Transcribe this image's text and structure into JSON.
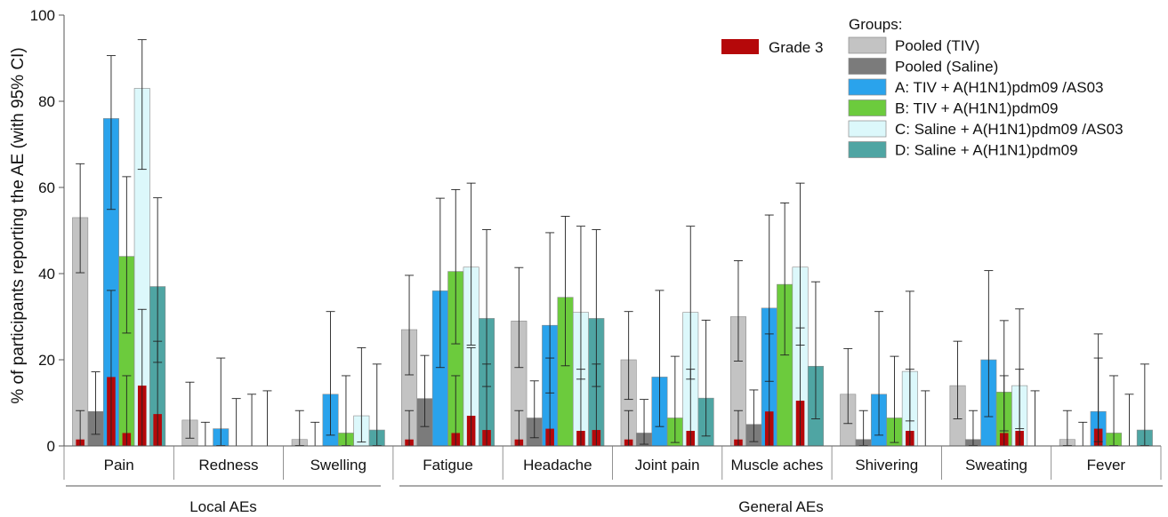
{
  "chart_data": {
    "type": "bar",
    "ylabel": "% of participants reporting the AE (with 95% CI)",
    "ylim": [
      0,
      100
    ],
    "yticks": [
      0,
      20,
      40,
      60,
      80,
      100
    ],
    "categories": [
      "Pain",
      "Redness",
      "Swelling",
      "Fatigue",
      "Headache",
      "Joint pain",
      "Muscle aches",
      "Shivering",
      "Sweating",
      "Fever"
    ],
    "category_groups": [
      {
        "label": "Local AEs",
        "categories": [
          "Pain",
          "Redness",
          "Swelling"
        ]
      },
      {
        "label": "General AEs",
        "categories": [
          "Fatigue",
          "Headache",
          "Joint pain",
          "Muscle aches",
          "Shivering",
          "Sweating",
          "Fever"
        ]
      }
    ],
    "legend_title": "Groups:",
    "legend_position": "top-right",
    "series": [
      {
        "name": "Pooled (TIV)",
        "color": "#c3c3c3",
        "values": [
          53,
          6,
          1.5,
          27,
          29,
          20,
          30,
          12,
          14,
          1.5
        ],
        "ci_upper": [
          65.5,
          14.8,
          8.2,
          39.6,
          41.4,
          31.2,
          43,
          22.6,
          24.3,
          8.2
        ],
        "ci_lower": [
          40.2,
          1.8,
          0.1,
          16.5,
          18.2,
          10.8,
          19.7,
          5.2,
          6.3,
          0.1
        ],
        "grade3": [
          1.5,
          null,
          null,
          1.5,
          1.5,
          1.5,
          1.5,
          null,
          null,
          null
        ],
        "grade3_ci_upper": [
          8.2,
          null,
          null,
          8.2,
          8.2,
          8.2,
          8.2,
          null,
          null,
          null
        ]
      },
      {
        "name": "Pooled (Saline)",
        "color": "#7b7b7b",
        "values": [
          8,
          0,
          0,
          11,
          6.5,
          3,
          5,
          1.5,
          1.5,
          0
        ],
        "ci_upper": [
          17.2,
          5.5,
          5.5,
          21,
          15.1,
          10.8,
          13,
          8.2,
          8.2,
          5.5
        ],
        "ci_lower": [
          2.7,
          null,
          null,
          4.5,
          1.9,
          0.4,
          1,
          0.1,
          0.1,
          null
        ],
        "grade3": [
          null,
          null,
          null,
          null,
          null,
          null,
          null,
          null,
          null,
          null
        ],
        "grade3_ci_upper": [
          null,
          null,
          null,
          null,
          null,
          null,
          null,
          null,
          null,
          null
        ]
      },
      {
        "name": "A: TIV + A(H1N1)pdm09 /AS03",
        "color": "#2aa3ec",
        "values": [
          76,
          4,
          12,
          36,
          28,
          16,
          32,
          12,
          20,
          8
        ],
        "ci_upper": [
          90.6,
          20.4,
          31.2,
          57.5,
          49.5,
          36.1,
          53.6,
          31.2,
          40.7,
          26
        ],
        "ci_lower": [
          54.9,
          0.1,
          2.5,
          18.2,
          12.3,
          4.5,
          15,
          2.5,
          6.8,
          1
        ],
        "grade3": [
          16,
          null,
          null,
          null,
          4,
          null,
          8,
          null,
          null,
          4
        ],
        "grade3_ci_upper": [
          36.1,
          null,
          null,
          null,
          20.4,
          null,
          26,
          null,
          null,
          20.4
        ]
      },
      {
        "name": "B: TIV + A(H1N1)pdm09",
        "color": "#6ccb3d",
        "values": [
          44,
          0,
          3,
          40.5,
          34.5,
          6.5,
          37.5,
          6.5,
          12.5,
          3
        ],
        "ci_upper": [
          62.5,
          11,
          16.3,
          59.5,
          53.3,
          20.8,
          56.4,
          20.8,
          29.1,
          16.3
        ],
        "ci_lower": [
          26.2,
          null,
          0.1,
          23.7,
          18.6,
          0.8,
          21.1,
          0.8,
          3.5,
          0.1
        ],
        "grade3": [
          3,
          null,
          null,
          3,
          null,
          null,
          null,
          null,
          3,
          null
        ],
        "grade3_ci_upper": [
          16.3,
          null,
          null,
          16.3,
          null,
          null,
          null,
          null,
          16.3,
          null
        ]
      },
      {
        "name": "C: Saline + A(H1N1)pdm09 /AS03",
        "color": "#dcf8fb",
        "values": [
          83,
          0,
          7,
          41.5,
          31,
          31,
          41.5,
          17.3,
          14,
          0
        ],
        "ci_upper": [
          94.3,
          12,
          22.8,
          61,
          51,
          51,
          61,
          35.9,
          31.8,
          12
        ],
        "ci_lower": [
          64.2,
          null,
          0.9,
          23.4,
          15.5,
          15.5,
          23.4,
          5.8,
          4,
          null
        ],
        "grade3": [
          14,
          null,
          null,
          7,
          3.5,
          3.5,
          10.5,
          3.5,
          3.5,
          null
        ],
        "grade3_ci_upper": [
          31.7,
          null,
          null,
          22.8,
          17.8,
          17.8,
          27.4,
          17.8,
          17.8,
          null
        ]
      },
      {
        "name": "D: Saline + A(H1N1)pdm09",
        "color": "#4fa5a3",
        "values": [
          37,
          0,
          3.7,
          29.6,
          29.6,
          11.1,
          18.5,
          0,
          0,
          3.7
        ],
        "ci_upper": [
          57.6,
          12.8,
          19,
          50.2,
          50.2,
          29.2,
          38.1,
          12.8,
          12.8,
          19
        ],
        "ci_lower": [
          19.4,
          null,
          0.1,
          13.8,
          13.8,
          2.3,
          6.3,
          null,
          null,
          0.1
        ],
        "grade3": [
          7.4,
          null,
          null,
          3.7,
          3.7,
          null,
          null,
          null,
          null,
          null
        ],
        "grade3_ci_upper": [
          24.3,
          null,
          null,
          19,
          19,
          null,
          null,
          null,
          null,
          null
        ]
      }
    ],
    "grade3_legend": {
      "label": "Grade 3",
      "color": "#b5080a"
    }
  }
}
